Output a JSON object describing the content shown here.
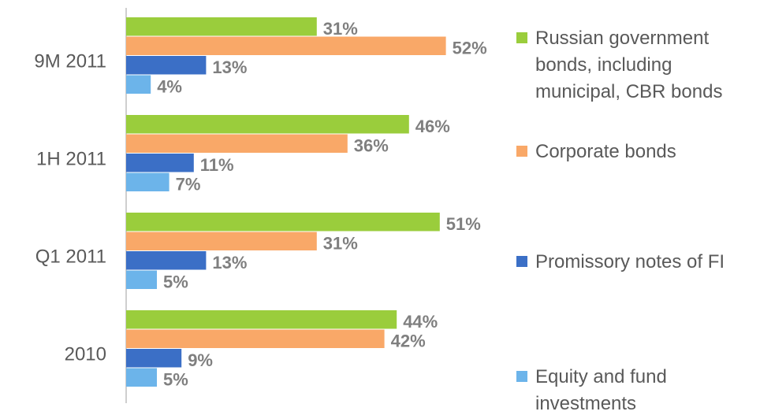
{
  "chart_data": {
    "type": "bar",
    "orientation": "horizontal",
    "categories": [
      "9M 2011",
      "1H 2011",
      "Q1 2011",
      "2010"
    ],
    "series": [
      {
        "name": "Russian government bonds, including municipal, CBR bonds",
        "color": "#9acd3c",
        "values": [
          31,
          46,
          51,
          44
        ],
        "value_labels": [
          "31%",
          "46%",
          "51%",
          "44%"
        ]
      },
      {
        "name": "Corporate bonds",
        "color": "#f9a868",
        "values": [
          52,
          36,
          31,
          42
        ],
        "value_labels": [
          "52%",
          "36%",
          "31%",
          "42%"
        ]
      },
      {
        "name": "Promissory notes of FI",
        "color": "#3b6fc6",
        "values": [
          13,
          11,
          13,
          9
        ],
        "value_labels": [
          "13%",
          "11%",
          "13%",
          "9%"
        ]
      },
      {
        "name": "Equity and fund investments",
        "color": "#6cb4ea",
        "values": [
          4,
          7,
          5,
          5
        ],
        "value_labels": [
          "4%",
          "7%",
          "5%",
          "5%"
        ]
      }
    ],
    "legend": "right"
  }
}
